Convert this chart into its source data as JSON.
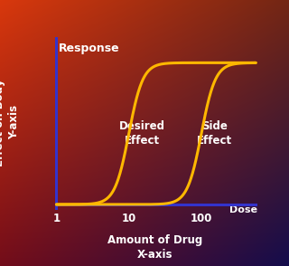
{
  "curve_color": "#FFB800",
  "axis_color": "#3333CC",
  "text_color": "#FFFFFF",
  "response_label": "Response",
  "dose_label": "Dose",
  "xlabel_line1": "Amount of Drug",
  "xlabel_line2": "X-axis",
  "ylabel_line1": "Effect on Body",
  "ylabel_line2": "Y-axis",
  "xtick_labels": [
    "1",
    "10",
    "100"
  ],
  "desired_label": "Desired\nEffect",
  "side_label": "Side\nEffect",
  "curve1_ec50_log": 1.0,
  "curve2_ec50_log": 2.0,
  "hill_n": 4.5,
  "xlog_min": 0.0,
  "xlog_max": 2.75,
  "bg_tl": [
    0.85,
    0.22,
    0.05
  ],
  "bg_tr": [
    0.45,
    0.15,
    0.08
  ],
  "bg_bl": [
    0.45,
    0.05,
    0.1
  ],
  "bg_br": [
    0.08,
    0.05,
    0.3
  ]
}
